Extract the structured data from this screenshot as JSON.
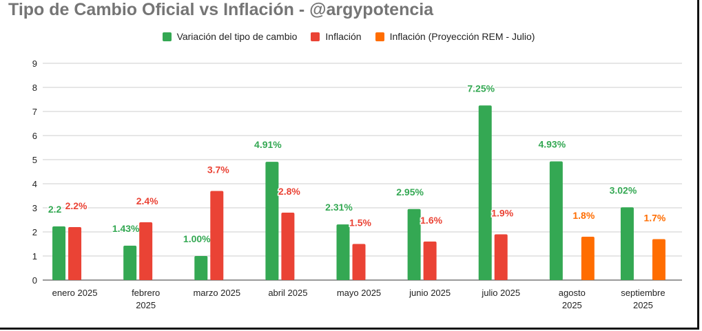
{
  "chart_data": {
    "type": "bar",
    "title": "Tipo de Cambio Oficial vs Inflación - @argypotencia",
    "xlabel": "",
    "ylabel": "",
    "ylim": [
      0,
      9
    ],
    "yticks": [
      "0",
      "1",
      "2",
      "3",
      "4",
      "5",
      "6",
      "7",
      "8",
      "9"
    ],
    "grid": true,
    "legend_position": "top",
    "categories": [
      [
        "enero 2025"
      ],
      [
        "febrero",
        "2025"
      ],
      [
        "marzo 2025"
      ],
      [
        "abril 2025"
      ],
      [
        "mayo 2025"
      ],
      [
        "junio 2025"
      ],
      [
        "julio 2025"
      ],
      [
        "agosto",
        "2025"
      ],
      [
        "septiembre",
        "2025"
      ]
    ],
    "series": [
      {
        "name": "Variación del tipo de cambio",
        "color": "#34a853",
        "values": [
          2.23,
          1.43,
          1.0,
          4.91,
          2.31,
          2.95,
          7.25,
          4.93,
          3.02
        ],
        "labels": [
          "2.2",
          "1.43%",
          "1.00%",
          "4.91%",
          "2.31%",
          "2.95%",
          "7.25%",
          "4.93%",
          "3.02%"
        ]
      },
      {
        "name": "Inflación",
        "color": "#ea4335",
        "values": [
          2.2,
          2.4,
          3.7,
          2.8,
          1.5,
          1.6,
          1.9,
          null,
          null
        ],
        "labels": [
          "2.2%",
          "2.4%",
          "3.7%",
          "2.8%",
          "1.5%",
          "1.6%",
          "1.9%",
          null,
          null
        ]
      },
      {
        "name": "Inflación (Proyección REM - Julio)",
        "color": "#ff6d01",
        "values": [
          null,
          null,
          null,
          null,
          null,
          null,
          null,
          1.8,
          1.7
        ],
        "labels": [
          null,
          null,
          null,
          null,
          null,
          null,
          null,
          "1.8%",
          "1.7%"
        ]
      }
    ]
  }
}
